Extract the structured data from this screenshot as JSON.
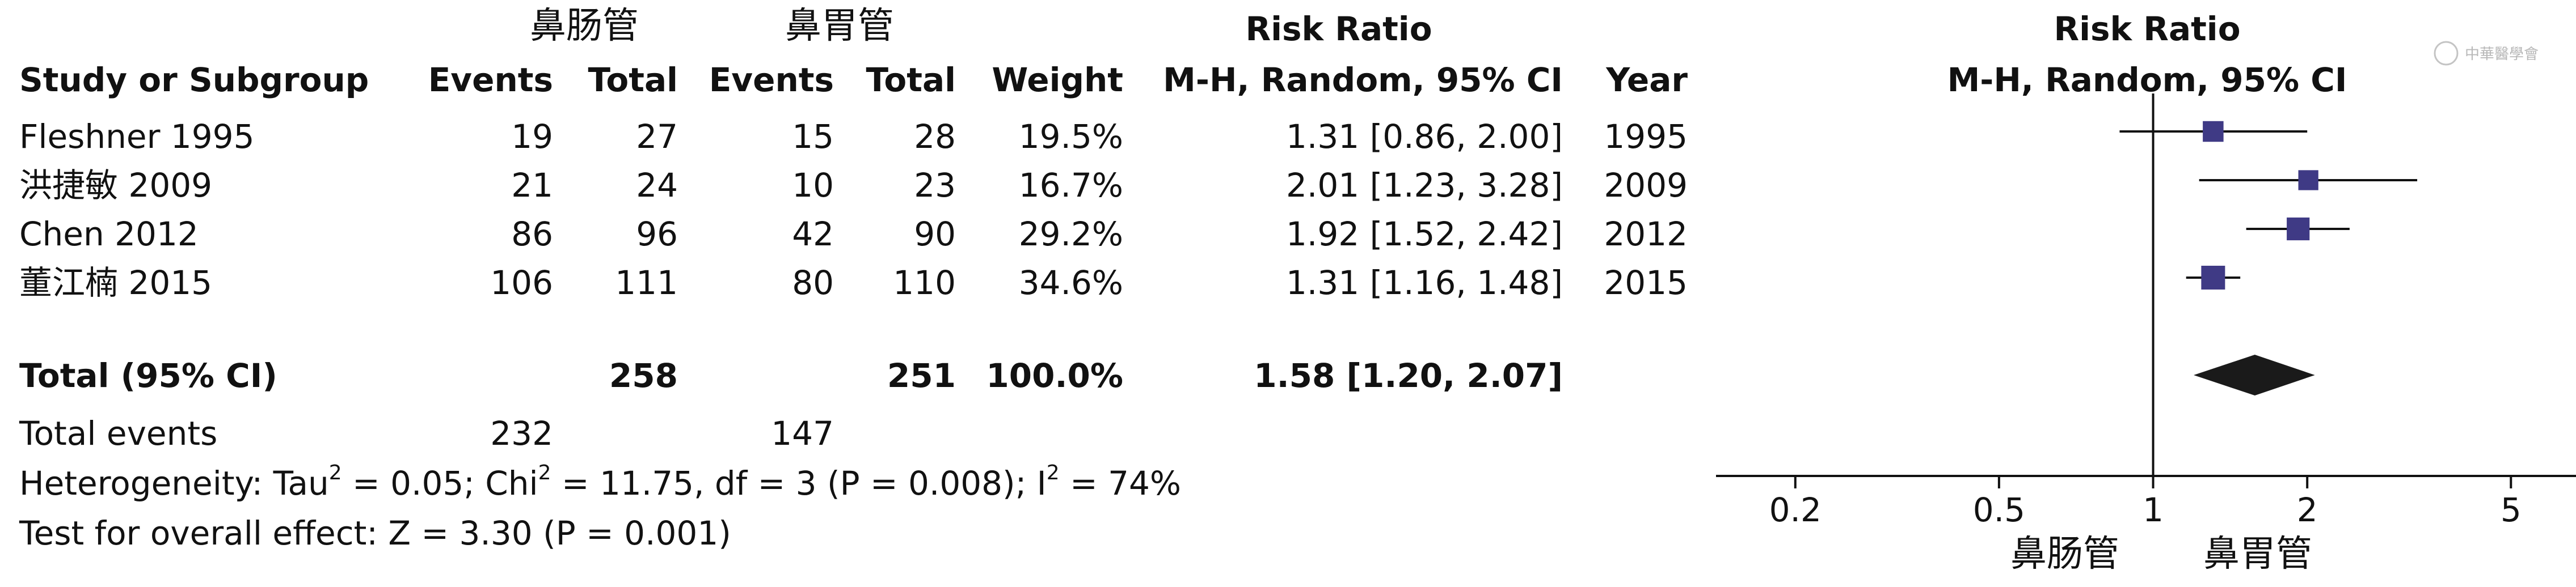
{
  "headers": {
    "group1": "鼻肠管",
    "group2": "鼻胃管",
    "risk_ratio_title": "Risk Ratio",
    "study_col": "Study or Subgroup",
    "events1": "Events",
    "total1": "Total",
    "events2": "Events",
    "total2": "Total",
    "weight": "Weight",
    "method": "M-H, Random, 95% CI",
    "year": "Year",
    "plot_title": "Risk Ratio",
    "plot_method": "M-H, Random, 95% CI"
  },
  "studies": [
    {
      "name": "Fleshner 1995",
      "e1": "19",
      "t1": "27",
      "e2": "15",
      "t2": "28",
      "weight": "19.5%",
      "ci": "1.31 [0.86, 2.00]",
      "year": "1995"
    },
    {
      "name": "洪捷敏 2009",
      "e1": "21",
      "t1": "24",
      "e2": "10",
      "t2": "23",
      "weight": "16.7%",
      "ci": "2.01 [1.23, 3.28]",
      "year": "2009"
    },
    {
      "name": "Chen 2012",
      "e1": "86",
      "t1": "96",
      "e2": "42",
      "t2": "90",
      "weight": "29.2%",
      "ci": "1.92 [1.52, 2.42]",
      "year": "2012"
    },
    {
      "name": "董江楠 2015",
      "e1": "106",
      "t1": "111",
      "e2": "80",
      "t2": "110",
      "weight": "34.6%",
      "ci": "1.31 [1.16, 1.48]",
      "year": "2015"
    }
  ],
  "total": {
    "label": "Total (95% CI)",
    "t1": "258",
    "t2": "251",
    "weight": "100.0%",
    "ci": "1.58 [1.20, 2.07]"
  },
  "events": {
    "label": "Total events",
    "e1": "232",
    "e2": "147"
  },
  "heterogeneity": {
    "prefix": "Heterogeneity: Tau",
    "chi": " = 0.05; Chi",
    "df": " = 11.75, df = 3 (P = 0.008); I",
    "end": " = 74%",
    "sup": "2"
  },
  "overall_effect": "Test for overall effect: Z = 3.30 (P = 0.001)",
  "favours": {
    "left": "鼻肠管",
    "right": "鼻胃管"
  },
  "watermark": "中華醫學會",
  "chart_data": {
    "type": "forest",
    "scale": "log",
    "xlim": [
      0.14,
      6.7
    ],
    "ticks": [
      0.2,
      0.5,
      1,
      2,
      5
    ],
    "tick_labels": [
      "0.2",
      "0.5",
      "1",
      "2",
      "5"
    ],
    "studies": [
      {
        "rr": 1.31,
        "lo": 0.86,
        "hi": 2.0,
        "weight": 19.5
      },
      {
        "rr": 2.01,
        "lo": 1.23,
        "hi": 3.28,
        "weight": 16.7
      },
      {
        "rr": 1.92,
        "lo": 1.52,
        "hi": 2.42,
        "weight": 29.2
      },
      {
        "rr": 1.31,
        "lo": 1.16,
        "hi": 1.48,
        "weight": 34.6
      }
    ],
    "overall": {
      "rr": 1.58,
      "lo": 1.2,
      "hi": 2.07
    },
    "colors": {
      "marker": "#3f3a85",
      "diamond": "#1a1a1a",
      "line": "#111111"
    }
  }
}
